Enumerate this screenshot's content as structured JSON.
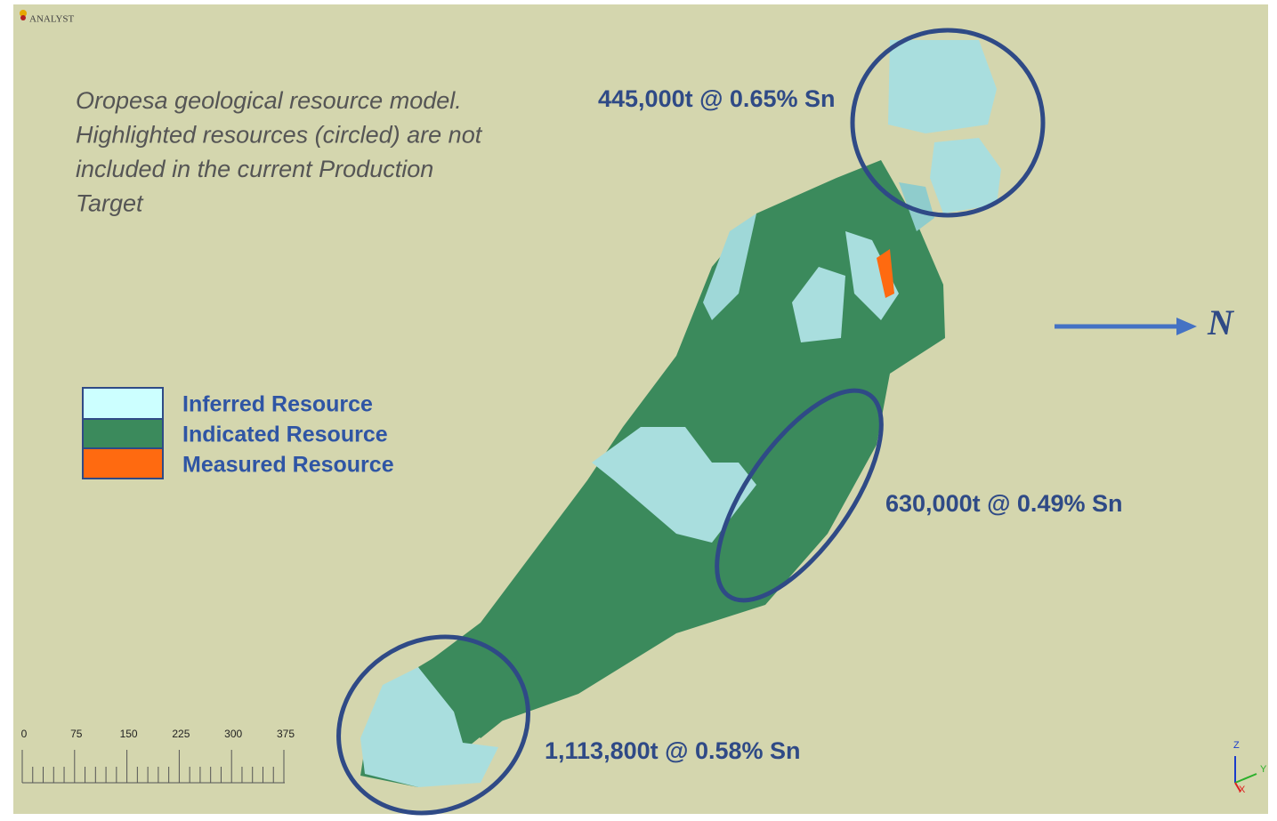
{
  "app": {
    "logo": "ANALYST"
  },
  "caption": {
    "lines": [
      "Oropesa geological resource model.",
      "Highlighted resources (circled) are not",
      "included in the current Production",
      "Target"
    ]
  },
  "annotations": [
    "445,000t @ 0.65% Sn",
    "630,000t @ 0.49% Sn",
    "1,113,800t @ 0.58% Sn"
  ],
  "legend": [
    "Inferred Resource",
    "Indicated Resource",
    "Measured Resource"
  ],
  "north": "N",
  "scale": {
    "ticks": [
      0,
      75,
      150,
      225,
      300,
      375
    ]
  },
  "axes": {
    "z": "Z",
    "y": "Y",
    "x": "X"
  }
}
